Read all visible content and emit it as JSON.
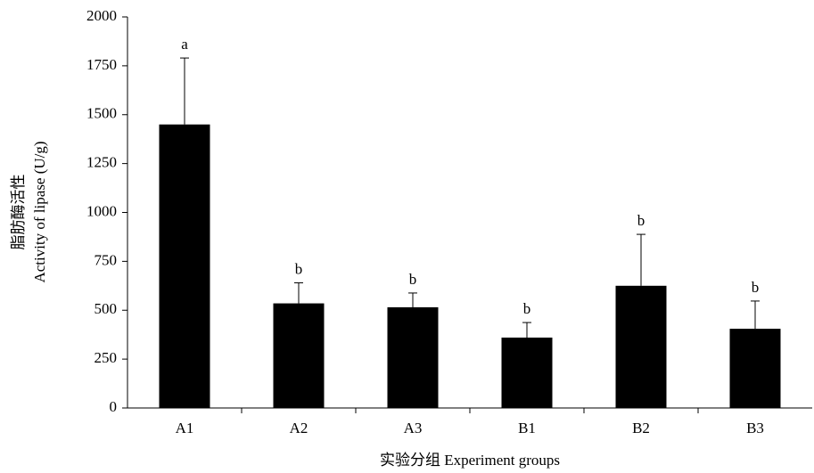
{
  "chart_data": {
    "type": "bar",
    "y_label": [
      "脂肪酶活性",
      "Activity of lipase (U/g)"
    ],
    "x_label": "实验分组 Experiment groups",
    "categories": [
      "A1",
      "A2",
      "A3",
      "B1",
      "B2",
      "B3"
    ],
    "values": [
      1450,
      535,
      515,
      360,
      625,
      405
    ],
    "errors": [
      340,
      105,
      73,
      77,
      263,
      142
    ],
    "significance": [
      "a",
      "b",
      "b",
      "b",
      "b",
      "b"
    ],
    "color": "#000000",
    "ylim": [
      0,
      2000
    ],
    "yticks": [
      0,
      250,
      500,
      750,
      1000,
      1250,
      1500,
      1750,
      2000
    ],
    "grid": false
  }
}
